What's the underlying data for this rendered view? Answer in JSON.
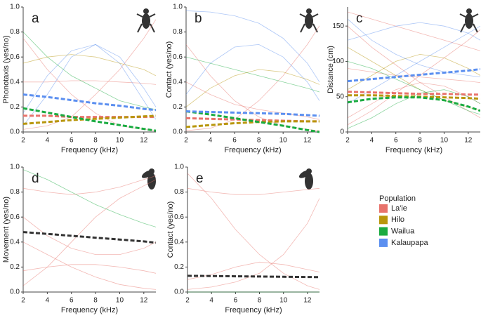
{
  "chart_data": [
    {
      "type": "line",
      "panel_label": "a",
      "x_label": "Frequency (kHz)",
      "y_label": "Phonotaxis (yes/no)",
      "x": [
        2,
        4,
        6,
        8,
        10,
        12,
        13
      ],
      "xlim": [
        2,
        13
      ],
      "xticks": [
        2,
        4,
        6,
        8,
        10,
        12
      ],
      "ylim": [
        0,
        1
      ],
      "yticks": [
        {
          "value": 0,
          "label": "0.0"
        },
        0.2,
        0.4,
        0.6,
        0.8,
        {
          "value": 1,
          "label": "1.0"
        }
      ],
      "series": [
        {
          "style": "thin",
          "color": "#e8736c",
          "values": [
            0.75,
            0.5,
            0.3,
            0.15,
            0.05,
            0.02,
            0.01
          ]
        },
        {
          "style": "thin",
          "color": "#e8736c",
          "values": [
            0.02,
            0.05,
            0.12,
            0.3,
            0.5,
            0.75,
            0.9
          ]
        },
        {
          "style": "thin",
          "color": "#e8736c",
          "values": [
            0.4,
            0.4,
            0.41,
            0.41,
            0.4,
            0.39,
            0.38
          ]
        },
        {
          "style": "thin",
          "color": "#5b8ff0",
          "values": [
            0.15,
            0.45,
            0.65,
            0.7,
            0.6,
            0.35,
            0.2
          ]
        },
        {
          "style": "thin",
          "color": "#5b8ff0",
          "values": [
            0.05,
            0.3,
            0.6,
            0.7,
            0.55,
            0.25,
            0.1
          ]
        },
        {
          "style": "thin",
          "color": "#1aab40",
          "values": [
            0.8,
            0.6,
            0.45,
            0.35,
            0.25,
            0.2,
            0.18
          ]
        },
        {
          "style": "thin",
          "color": "#b8960c",
          "values": [
            0.55,
            0.6,
            0.62,
            0.6,
            0.55,
            0.5,
            0.45
          ]
        },
        {
          "style": "dashed",
          "color": "#e8736c",
          "values": [
            0.13,
            0.13,
            0.12,
            0.12,
            0.12,
            0.12,
            0.12
          ]
        },
        {
          "style": "dashed",
          "color": "#b8960c",
          "values": [
            0.065,
            0.08,
            0.095,
            0.105,
            0.115,
            0.125,
            0.13
          ]
        },
        {
          "style": "dashed",
          "color": "#1aab40",
          "values": [
            0.19,
            0.155,
            0.12,
            0.085,
            0.055,
            0.025,
            0.01
          ]
        },
        {
          "style": "dashed",
          "color": "#5b8ff0",
          "values": [
            0.3,
            0.28,
            0.255,
            0.23,
            0.21,
            0.185,
            0.175
          ]
        }
      ]
    },
    {
      "type": "line",
      "panel_label": "b",
      "x_label": "Frequency (kHz)",
      "y_label": "Contact (yes/no)",
      "x": [
        2,
        4,
        6,
        8,
        10,
        12,
        13
      ],
      "xlim": [
        2,
        13
      ],
      "xticks": [
        2,
        4,
        6,
        8,
        10,
        12
      ],
      "ylim": [
        0,
        1
      ],
      "yticks": [
        {
          "value": 0,
          "label": "0.0"
        },
        0.2,
        0.4,
        0.6,
        0.8,
        {
          "value": 1,
          "label": "1.0"
        }
      ],
      "series": [
        {
          "style": "thin",
          "color": "#e8736c",
          "values": [
            0.7,
            0.45,
            0.25,
            0.12,
            0.05,
            0.02,
            0.01
          ]
        },
        {
          "style": "thin",
          "color": "#e8736c",
          "values": [
            0.01,
            0.03,
            0.1,
            0.25,
            0.45,
            0.7,
            0.85
          ]
        },
        {
          "style": "thin",
          "color": "#e8736c",
          "values": [
            0.4,
            0.3,
            0.22,
            0.18,
            0.15,
            0.12,
            0.1
          ]
        },
        {
          "style": "thin",
          "color": "#5b8ff0",
          "values": [
            0.3,
            0.55,
            0.68,
            0.7,
            0.6,
            0.4,
            0.25
          ]
        },
        {
          "style": "thin",
          "color": "#5b8ff0",
          "values": [
            0.97,
            0.96,
            0.93,
            0.87,
            0.75,
            0.55,
            0.4
          ]
        },
        {
          "style": "thin",
          "color": "#1aab40",
          "values": [
            0.6,
            0.55,
            0.5,
            0.45,
            0.4,
            0.35,
            0.32
          ]
        },
        {
          "style": "thin",
          "color": "#b8960c",
          "values": [
            0.2,
            0.35,
            0.45,
            0.5,
            0.48,
            0.42,
            0.38
          ]
        },
        {
          "style": "dashed",
          "color": "#e8736c",
          "values": [
            0.11,
            0.105,
            0.1,
            0.095,
            0.09,
            0.085,
            0.085
          ]
        },
        {
          "style": "dashed",
          "color": "#b8960c",
          "values": [
            0.04,
            0.055,
            0.07,
            0.08,
            0.085,
            0.085,
            0.085
          ]
        },
        {
          "style": "dashed",
          "color": "#1aab40",
          "values": [
            0.165,
            0.14,
            0.11,
            0.08,
            0.05,
            0.015,
            0
          ]
        },
        {
          "style": "dashed",
          "color": "#5b8ff0",
          "values": [
            0.165,
            0.16,
            0.155,
            0.15,
            0.145,
            0.135,
            0.13
          ]
        }
      ]
    },
    {
      "type": "line",
      "panel_label": "c",
      "x_label": "Frequency (kHz)",
      "y_label": "Distance (cm)",
      "x": [
        2,
        4,
        6,
        8,
        10,
        12,
        13
      ],
      "xlim": [
        2,
        13
      ],
      "xticks": [
        2,
        4,
        6,
        8,
        10,
        12
      ],
      "ylim": [
        0,
        177
      ],
      "yticks": [
        0,
        50,
        100,
        150
      ],
      "series": [
        {
          "style": "thin",
          "color": "#e8736c",
          "values": [
            150,
            120,
            95,
            70,
            50,
            30,
            20
          ]
        },
        {
          "style": "thin",
          "color": "#e8736c",
          "values": [
            10,
            30,
            55,
            80,
            105,
            130,
            145
          ]
        },
        {
          "style": "thin",
          "color": "#e8736c",
          "values": [
            90,
            85,
            80,
            78,
            75,
            72,
            70
          ]
        },
        {
          "style": "thin",
          "color": "#e8736c",
          "values": [
            20,
            40,
            60,
            70,
            65,
            50,
            40
          ]
        },
        {
          "style": "thin",
          "color": "#e8736c",
          "values": [
            170,
            160,
            150,
            140,
            130,
            120,
            115
          ]
        },
        {
          "style": "thin",
          "color": "#b8960c",
          "values": [
            60,
            80,
            100,
            110,
            105,
            90,
            80
          ]
        },
        {
          "style": "thin",
          "color": "#b8960c",
          "values": [
            120,
            100,
            80,
            60,
            45,
            35,
            30
          ]
        },
        {
          "style": "thin",
          "color": "#1aab40",
          "values": [
            5,
            20,
            40,
            55,
            60,
            50,
            40
          ]
        },
        {
          "style": "thin",
          "color": "#1aab40",
          "values": [
            100,
            90,
            75,
            60,
            45,
            30,
            25
          ]
        },
        {
          "style": "thin",
          "color": "#5b8ff0",
          "values": [
            130,
            140,
            150,
            155,
            150,
            140,
            130
          ]
        },
        {
          "style": "thin",
          "color": "#5b8ff0",
          "values": [
            40,
            60,
            80,
            100,
            120,
            140,
            150
          ]
        },
        {
          "style": "thin",
          "color": "#5b8ff0",
          "values": [
            160,
            130,
            110,
            95,
            85,
            80,
            78
          ]
        },
        {
          "style": "dashed",
          "color": "#e8736c",
          "values": [
            57,
            56,
            55,
            54,
            54,
            53,
            53
          ]
        },
        {
          "style": "dashed",
          "color": "#b8960c",
          "values": [
            52,
            52,
            51,
            50,
            49,
            48,
            47
          ]
        },
        {
          "style": "dashed",
          "color": "#1aab40",
          "values": [
            42,
            47,
            49,
            49,
            45,
            36,
            30
          ]
        },
        {
          "style": "dashed",
          "color": "#5b8ff0",
          "values": [
            72,
            75,
            78,
            81,
            84,
            87,
            89
          ]
        }
      ]
    },
    {
      "type": "line",
      "panel_label": "d",
      "x_label": "Frequency (kHz)",
      "y_label": "Movement (yes/no)",
      "x": [
        2,
        4,
        6,
        8,
        10,
        12,
        13
      ],
      "xlim": [
        2,
        13
      ],
      "xticks": [
        2,
        4,
        6,
        8,
        10,
        12
      ],
      "ylim": [
        0,
        1
      ],
      "yticks": [
        {
          "value": 0,
          "label": "0.0"
        },
        0.2,
        0.4,
        0.6,
        0.8,
        {
          "value": 1,
          "label": "1.0"
        }
      ],
      "series": [
        {
          "style": "thin",
          "color": "#e8736c",
          "values": [
            0.83,
            0.8,
            0.78,
            0.8,
            0.84,
            0.9,
            0.93
          ]
        },
        {
          "style": "thin",
          "color": "#e8736c",
          "values": [
            0.05,
            0.2,
            0.4,
            0.6,
            0.75,
            0.85,
            0.9
          ]
        },
        {
          "style": "thin",
          "color": "#e8736c",
          "values": [
            0.6,
            0.45,
            0.35,
            0.3,
            0.3,
            0.35,
            0.4
          ]
        },
        {
          "style": "thin",
          "color": "#e8736c",
          "values": [
            0.17,
            0.2,
            0.22,
            0.22,
            0.2,
            0.17,
            0.15
          ]
        },
        {
          "style": "thin",
          "color": "#e8736c",
          "values": [
            0.4,
            0.3,
            0.2,
            0.12,
            0.06,
            0.03,
            0.02
          ]
        },
        {
          "style": "thin",
          "color": "#1aab40",
          "values": [
            0.98,
            0.9,
            0.8,
            0.7,
            0.62,
            0.55,
            0.52
          ]
        },
        {
          "style": "dashed",
          "color": "#333333",
          "values": [
            0.48,
            0.465,
            0.45,
            0.435,
            0.42,
            0.405,
            0.395
          ]
        }
      ]
    },
    {
      "type": "line",
      "panel_label": "e",
      "x_label": "Frequency (kHz)",
      "y_label": "Contact (yes/no)",
      "x": [
        2,
        4,
        6,
        8,
        10,
        12,
        13
      ],
      "xlim": [
        2,
        13
      ],
      "xticks": [
        2,
        4,
        6,
        8,
        10,
        12
      ],
      "ylim": [
        0,
        1
      ],
      "yticks": [
        {
          "value": 0,
          "label": "0.0"
        },
        0.2,
        0.4,
        0.6,
        0.8,
        {
          "value": 1,
          "label": "1.0"
        }
      ],
      "series": [
        {
          "style": "thin",
          "color": "#e8736c",
          "values": [
            0.83,
            0.8,
            0.78,
            0.78,
            0.8,
            0.82,
            0.83
          ]
        },
        {
          "style": "thin",
          "color": "#e8736c",
          "values": [
            0.02,
            0.04,
            0.08,
            0.15,
            0.3,
            0.55,
            0.75
          ]
        },
        {
          "style": "thin",
          "color": "#e8736c",
          "values": [
            0.95,
            0.75,
            0.5,
            0.3,
            0.15,
            0.05,
            0.02
          ]
        },
        {
          "style": "thin",
          "color": "#e8736c",
          "values": [
            0.1,
            0.14,
            0.2,
            0.24,
            0.22,
            0.18,
            0.16
          ]
        },
        {
          "style": "thin",
          "color": "#1aab40",
          "values": [
            0,
            0,
            0,
            0,
            0,
            0,
            0
          ]
        },
        {
          "style": "dashed",
          "color": "#333333",
          "values": [
            0.13,
            0.128,
            0.126,
            0.124,
            0.122,
            0.12,
            0.119
          ]
        }
      ]
    }
  ],
  "legend": {
    "title": "Population",
    "entries": [
      {
        "name": "La'ie",
        "color": "#e8736c"
      },
      {
        "name": "Hilo",
        "color": "#b8960c"
      },
      {
        "name": "Wailua",
        "color": "#1aab40"
      },
      {
        "name": "Kalaupapa",
        "color": "#5b8ff0"
      }
    ]
  }
}
